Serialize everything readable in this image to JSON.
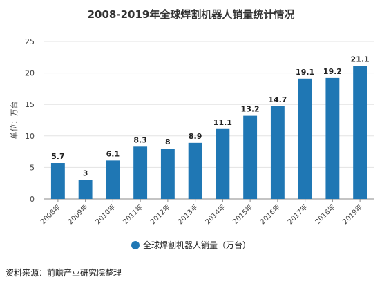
{
  "chart_data": {
    "type": "bar",
    "title": "2008-2019年全球焊割机器人销量统计情况",
    "categories": [
      "2008年",
      "2009年",
      "2010年",
      "2011年",
      "2012年",
      "2013年",
      "2014年",
      "2015年",
      "2016年",
      "2017年",
      "2018年",
      "2019年"
    ],
    "series": [
      {
        "name": "全球焊割机器人销量（万台）",
        "values": [
          5.7,
          3,
          6.1,
          8.3,
          8,
          8.9,
          11.1,
          13.2,
          14.7,
          19.1,
          19.2,
          21.1
        ]
      }
    ],
    "data_labels": [
      "5.7",
      "3",
      "6.1",
      "8.3",
      "8",
      "8.9",
      "11.1",
      "13.2",
      "14.7",
      "19.1",
      "19.2",
      "21.1"
    ],
    "ylabel": "单位：万台",
    "xlabel": "",
    "ylim": [
      0,
      25
    ],
    "yticks": [
      0,
      5,
      10,
      15,
      20,
      25
    ],
    "grid": true,
    "legend_position": "bottom-center",
    "color": "#1f77b4"
  },
  "source": "资料来源：前瞻产业研究院整理"
}
